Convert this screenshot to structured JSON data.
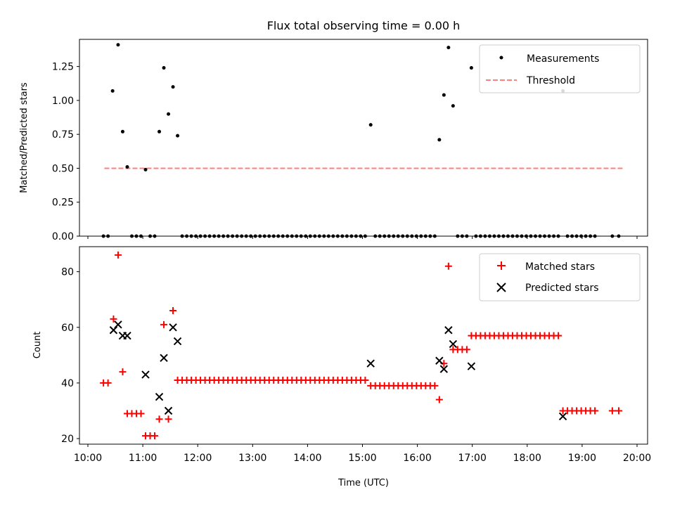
{
  "chart_data": [
    {
      "type": "scatter",
      "title": "Flux total observing time = 0.00 h",
      "ylabel": "Matched/Predicted stars",
      "xlim": [
        "10:00",
        "20:00"
      ],
      "ylim": [
        0,
        1.45
      ],
      "yticks": [
        "0.00",
        "0.25",
        "0.50",
        "0.75",
        "1.00",
        "1.25"
      ],
      "legend_position": "upper-right",
      "legend": [
        "Measurements",
        "Threshold"
      ],
      "series": [
        {
          "name": "Measurements",
          "color": "#000000",
          "marker": "dot",
          "points": [
            [
              "10:17",
              0.0
            ],
            [
              "10:22",
              0.0
            ],
            [
              "10:27",
              1.07
            ],
            [
              "10:33",
              1.41
            ],
            [
              "10:38",
              0.77
            ],
            [
              "10:43",
              0.51
            ],
            [
              "10:48",
              0.0
            ],
            [
              "10:53",
              0.0
            ],
            [
              "10:58",
              0.0
            ],
            [
              "11:03",
              0.49
            ],
            [
              "11:08",
              0.0
            ],
            [
              "11:13",
              0.0
            ],
            [
              "11:18",
              0.77
            ],
            [
              "11:23",
              1.24
            ],
            [
              "11:28",
              0.9
            ],
            [
              "11:33",
              1.1
            ],
            [
              "11:38",
              0.74
            ],
            [
              "11:43",
              0.0
            ],
            [
              "11:48",
              0.0
            ],
            [
              "11:53",
              0.0
            ],
            [
              "11:58",
              0.0
            ],
            [
              "12:03",
              0.0
            ],
            [
              "12:08",
              0.0
            ],
            [
              "12:13",
              0.0
            ],
            [
              "12:18",
              0.0
            ],
            [
              "12:23",
              0.0
            ],
            [
              "12:28",
              0.0
            ],
            [
              "12:33",
              0.0
            ],
            [
              "12:38",
              0.0
            ],
            [
              "12:43",
              0.0
            ],
            [
              "12:48",
              0.0
            ],
            [
              "12:53",
              0.0
            ],
            [
              "12:58",
              0.0
            ],
            [
              "13:03",
              0.0
            ],
            [
              "13:08",
              0.0
            ],
            [
              "13:13",
              0.0
            ],
            [
              "13:18",
              0.0
            ],
            [
              "13:23",
              0.0
            ],
            [
              "13:28",
              0.0
            ],
            [
              "13:33",
              0.0
            ],
            [
              "13:38",
              0.0
            ],
            [
              "13:43",
              0.0
            ],
            [
              "13:48",
              0.0
            ],
            [
              "13:53",
              0.0
            ],
            [
              "13:58",
              0.0
            ],
            [
              "14:03",
              0.0
            ],
            [
              "14:08",
              0.0
            ],
            [
              "14:13",
              0.0
            ],
            [
              "14:18",
              0.0
            ],
            [
              "14:23",
              0.0
            ],
            [
              "14:28",
              0.0
            ],
            [
              "14:33",
              0.0
            ],
            [
              "14:38",
              0.0
            ],
            [
              "14:43",
              0.0
            ],
            [
              "14:48",
              0.0
            ],
            [
              "14:53",
              0.0
            ],
            [
              "14:58",
              0.0
            ],
            [
              "15:03",
              0.0
            ],
            [
              "15:09",
              0.82
            ],
            [
              "15:14",
              0.0
            ],
            [
              "15:19",
              0.0
            ],
            [
              "15:24",
              0.0
            ],
            [
              "15:29",
              0.0
            ],
            [
              "15:34",
              0.0
            ],
            [
              "15:39",
              0.0
            ],
            [
              "15:44",
              0.0
            ],
            [
              "15:49",
              0.0
            ],
            [
              "15:54",
              0.0
            ],
            [
              "15:59",
              0.0
            ],
            [
              "16:04",
              0.0
            ],
            [
              "16:09",
              0.0
            ],
            [
              "16:14",
              0.0
            ],
            [
              "16:19",
              0.0
            ],
            [
              "16:24",
              0.71
            ],
            [
              "16:29",
              1.04
            ],
            [
              "16:34",
              1.39
            ],
            [
              "16:39",
              0.96
            ],
            [
              "16:44",
              0.0
            ],
            [
              "16:49",
              0.0
            ],
            [
              "16:54",
              0.0
            ],
            [
              "16:59",
              1.24
            ],
            [
              "17:04",
              0.0
            ],
            [
              "17:09",
              0.0
            ],
            [
              "17:14",
              0.0
            ],
            [
              "17:19",
              0.0
            ],
            [
              "17:24",
              0.0
            ],
            [
              "17:29",
              0.0
            ],
            [
              "17:34",
              0.0
            ],
            [
              "17:39",
              0.0
            ],
            [
              "17:44",
              0.0
            ],
            [
              "17:49",
              0.0
            ],
            [
              "17:54",
              0.0
            ],
            [
              "17:59",
              0.0
            ],
            [
              "18:04",
              0.0
            ],
            [
              "18:09",
              0.0
            ],
            [
              "18:14",
              0.0
            ],
            [
              "18:19",
              0.0
            ],
            [
              "18:24",
              0.0
            ],
            [
              "18:29",
              0.0
            ],
            [
              "18:34",
              0.0
            ],
            [
              "18:39",
              1.07
            ],
            [
              "18:44",
              0.0
            ],
            [
              "18:49",
              0.0
            ],
            [
              "18:54",
              0.0
            ],
            [
              "18:59",
              0.0
            ],
            [
              "19:04",
              0.0
            ],
            [
              "19:09",
              0.0
            ],
            [
              "19:14",
              0.0
            ],
            [
              "19:33",
              0.0
            ],
            [
              "19:40",
              0.0
            ]
          ]
        },
        {
          "name": "Threshold",
          "color": "#ff7f7f",
          "style": "dashed",
          "points": [
            [
              "10:18",
              0.5
            ],
            [
              "19:45",
              0.5
            ]
          ]
        }
      ]
    },
    {
      "type": "scatter",
      "xlabel": "Time (UTC)",
      "ylabel": "Count",
      "xlim": [
        "10:00",
        "20:00"
      ],
      "xticks": [
        "10:00",
        "11:00",
        "12:00",
        "13:00",
        "14:00",
        "15:00",
        "16:00",
        "17:00",
        "18:00",
        "19:00",
        "20:00"
      ],
      "ylim": [
        18,
        89
      ],
      "yticks": [
        "20",
        "40",
        "60",
        "80"
      ],
      "legend_position": "upper-right",
      "legend": [
        "Matched stars",
        "Predicted stars"
      ],
      "series": [
        {
          "name": "Matched stars",
          "color": "#ff0000",
          "marker": "plus",
          "points": [
            [
              "10:17",
              40
            ],
            [
              "10:22",
              40
            ],
            [
              "10:28",
              63
            ],
            [
              "10:33",
              86
            ],
            [
              "10:38",
              44
            ],
            [
              "10:43",
              29
            ],
            [
              "10:48",
              29
            ],
            [
              "10:53",
              29
            ],
            [
              "10:58",
              29
            ],
            [
              "11:03",
              21
            ],
            [
              "11:08",
              21
            ],
            [
              "11:13",
              21
            ],
            [
              "11:18",
              27
            ],
            [
              "11:23",
              61
            ],
            [
              "11:28",
              27
            ],
            [
              "11:33",
              66
            ],
            [
              "11:38",
              41
            ],
            [
              "11:43",
              41
            ],
            [
              "11:48",
              41
            ],
            [
              "11:53",
              41
            ],
            [
              "11:58",
              41
            ],
            [
              "12:03",
              41
            ],
            [
              "12:08",
              41
            ],
            [
              "12:13",
              41
            ],
            [
              "12:18",
              41
            ],
            [
              "12:23",
              41
            ],
            [
              "12:28",
              41
            ],
            [
              "12:33",
              41
            ],
            [
              "12:38",
              41
            ],
            [
              "12:43",
              41
            ],
            [
              "12:48",
              41
            ],
            [
              "12:53",
              41
            ],
            [
              "12:58",
              41
            ],
            [
              "13:03",
              41
            ],
            [
              "13:08",
              41
            ],
            [
              "13:13",
              41
            ],
            [
              "13:18",
              41
            ],
            [
              "13:23",
              41
            ],
            [
              "13:28",
              41
            ],
            [
              "13:33",
              41
            ],
            [
              "13:38",
              41
            ],
            [
              "13:43",
              41
            ],
            [
              "13:48",
              41
            ],
            [
              "13:53",
              41
            ],
            [
              "13:58",
              41
            ],
            [
              "14:03",
              41
            ],
            [
              "14:08",
              41
            ],
            [
              "14:13",
              41
            ],
            [
              "14:18",
              41
            ],
            [
              "14:23",
              41
            ],
            [
              "14:28",
              41
            ],
            [
              "14:33",
              41
            ],
            [
              "14:38",
              41
            ],
            [
              "14:43",
              41
            ],
            [
              "14:48",
              41
            ],
            [
              "14:53",
              41
            ],
            [
              "14:58",
              41
            ],
            [
              "15:03",
              41
            ],
            [
              "15:09",
              39
            ],
            [
              "15:14",
              39
            ],
            [
              "15:19",
              39
            ],
            [
              "15:24",
              39
            ],
            [
              "15:29",
              39
            ],
            [
              "15:34",
              39
            ],
            [
              "15:39",
              39
            ],
            [
              "15:44",
              39
            ],
            [
              "15:49",
              39
            ],
            [
              "15:54",
              39
            ],
            [
              "15:59",
              39
            ],
            [
              "16:04",
              39
            ],
            [
              "16:09",
              39
            ],
            [
              "16:14",
              39
            ],
            [
              "16:19",
              39
            ],
            [
              "16:24",
              34
            ],
            [
              "16:29",
              47
            ],
            [
              "16:34",
              82
            ],
            [
              "16:39",
              52
            ],
            [
              "16:44",
              52
            ],
            [
              "16:49",
              52
            ],
            [
              "16:54",
              52
            ],
            [
              "16:59",
              57
            ],
            [
              "17:04",
              57
            ],
            [
              "17:09",
              57
            ],
            [
              "17:14",
              57
            ],
            [
              "17:19",
              57
            ],
            [
              "17:24",
              57
            ],
            [
              "17:29",
              57
            ],
            [
              "17:34",
              57
            ],
            [
              "17:39",
              57
            ],
            [
              "17:44",
              57
            ],
            [
              "17:49",
              57
            ],
            [
              "17:54",
              57
            ],
            [
              "17:59",
              57
            ],
            [
              "18:04",
              57
            ],
            [
              "18:09",
              57
            ],
            [
              "18:14",
              57
            ],
            [
              "18:19",
              57
            ],
            [
              "18:24",
              57
            ],
            [
              "18:29",
              57
            ],
            [
              "18:34",
              57
            ],
            [
              "18:39",
              30
            ],
            [
              "18:44",
              30
            ],
            [
              "18:49",
              30
            ],
            [
              "18:54",
              30
            ],
            [
              "18:59",
              30
            ],
            [
              "19:04",
              30
            ],
            [
              "19:09",
              30
            ],
            [
              "19:14",
              30
            ],
            [
              "19:33",
              30
            ],
            [
              "19:40",
              30
            ]
          ]
        },
        {
          "name": "Predicted stars",
          "color": "#000000",
          "marker": "x",
          "points": [
            [
              "10:28",
              59
            ],
            [
              "10:33",
              61
            ],
            [
              "10:38",
              57
            ],
            [
              "10:43",
              57
            ],
            [
              "11:03",
              43
            ],
            [
              "11:18",
              35
            ],
            [
              "11:23",
              49
            ],
            [
              "11:28",
              30
            ],
            [
              "11:33",
              60
            ],
            [
              "11:38",
              55
            ],
            [
              "15:09",
              47
            ],
            [
              "16:24",
              48
            ],
            [
              "16:29",
              45
            ],
            [
              "16:34",
              59
            ],
            [
              "16:39",
              54
            ],
            [
              "16:59",
              46
            ],
            [
              "18:39",
              28
            ]
          ]
        }
      ]
    }
  ]
}
